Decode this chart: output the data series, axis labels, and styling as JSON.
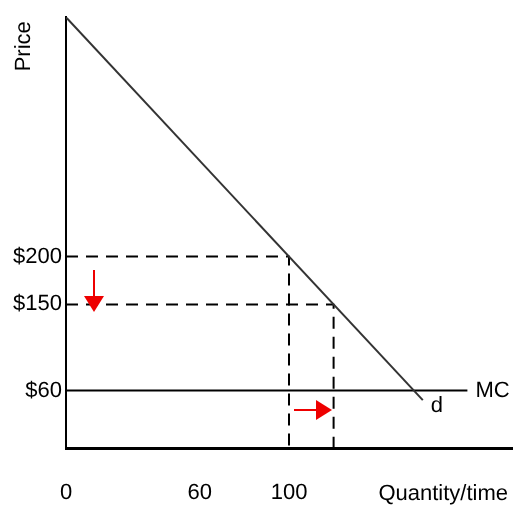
{
  "chart_data": {
    "type": "line",
    "xlabel": "Quantity/time",
    "ylabel": "Price",
    "xlim": [
      0,
      200
    ],
    "ylim": [
      0,
      450
    ],
    "xticks": [
      0,
      60,
      100
    ],
    "yticks": [
      {
        "value": 60,
        "label": "$60"
      },
      {
        "value": 150,
        "label": "$150"
      },
      {
        "value": 200,
        "label": "$200"
      }
    ],
    "grid": false,
    "legend": false,
    "marker": "none",
    "series": [
      {
        "name": "d",
        "color": "#333333",
        "x": [
          0,
          160
        ],
        "values": [
          450,
          50
        ]
      },
      {
        "name": "MC",
        "color": "#000000",
        "x": [
          0,
          180
        ],
        "values": [
          60,
          60
        ]
      },
      {
        "color": "#000000",
        "line_style": "dashed",
        "x": [
          0,
          100,
          100
        ],
        "values": [
          200,
          200,
          0
        ]
      },
      {
        "color": "#000000",
        "line_style": "dashed",
        "x": [
          0,
          120,
          120
        ],
        "values": [
          150,
          150,
          0
        ]
      }
    ]
  }
}
